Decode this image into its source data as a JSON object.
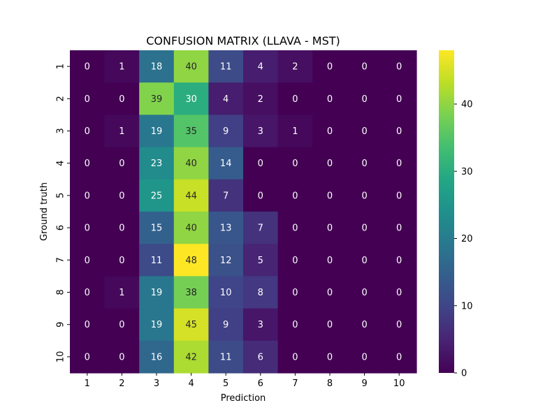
{
  "chart_data": {
    "type": "heatmap",
    "title": "CONFUSION MATRIX (LLAVA - MST)",
    "xlabel": "Prediction",
    "ylabel": "Ground truth",
    "x_categories": [
      "1",
      "2",
      "3",
      "4",
      "5",
      "6",
      "7",
      "8",
      "9",
      "10"
    ],
    "y_categories": [
      "1",
      "2",
      "3",
      "4",
      "5",
      "6",
      "7",
      "8",
      "9",
      "10"
    ],
    "values": [
      [
        0,
        1,
        18,
        40,
        11,
        4,
        2,
        0,
        0,
        0
      ],
      [
        0,
        0,
        39,
        30,
        4,
        2,
        0,
        0,
        0,
        0
      ],
      [
        0,
        1,
        19,
        35,
        9,
        3,
        1,
        0,
        0,
        0
      ],
      [
        0,
        0,
        23,
        40,
        14,
        0,
        0,
        0,
        0,
        0
      ],
      [
        0,
        0,
        25,
        44,
        7,
        0,
        0,
        0,
        0,
        0
      ],
      [
        0,
        0,
        15,
        40,
        13,
        7,
        0,
        0,
        0,
        0
      ],
      [
        0,
        0,
        11,
        48,
        12,
        5,
        0,
        0,
        0,
        0
      ],
      [
        0,
        1,
        19,
        38,
        10,
        8,
        0,
        0,
        0,
        0
      ],
      [
        0,
        0,
        19,
        45,
        9,
        3,
        0,
        0,
        0,
        0
      ],
      [
        0,
        0,
        16,
        42,
        11,
        6,
        0,
        0,
        0,
        0
      ]
    ],
    "colormap": "viridis",
    "value_range": [
      0,
      48
    ],
    "colorbar_ticks": [
      "0",
      "10",
      "20",
      "30",
      "40"
    ],
    "grid": false,
    "legend": "colorbar-right"
  }
}
